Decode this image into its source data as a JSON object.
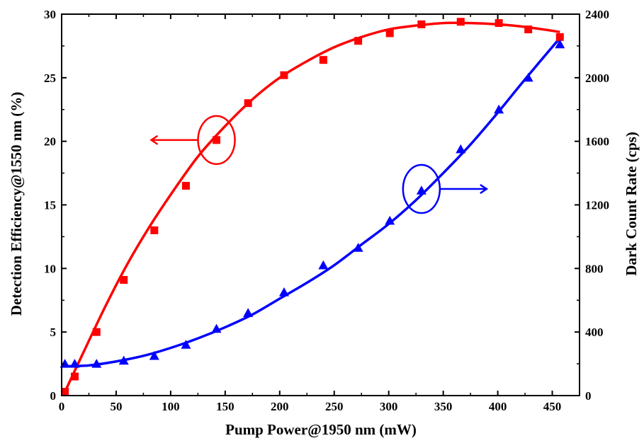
{
  "chart_data": {
    "type": "scatter",
    "xlabel": "Pump Power@1950 nm (mW)",
    "ylabel_left": "Detection Efficiency@1550 nm (%)",
    "ylabel_right": "Dark Count Rate (cps)",
    "xlim": [
      0,
      475
    ],
    "ylim_left": [
      0,
      30
    ],
    "ylim_right": [
      0,
      2400
    ],
    "x_ticks": [
      0,
      50,
      100,
      150,
      200,
      250,
      300,
      350,
      400,
      450
    ],
    "y_left_ticks": [
      0,
      5,
      10,
      15,
      20,
      25,
      30
    ],
    "y_right_ticks": [
      0,
      400,
      800,
      1200,
      1600,
      2000,
      2400
    ],
    "grid": false,
    "series": [
      {
        "axis": "left",
        "marker": "square",
        "color": "#ff0000",
        "x": [
          3,
          12,
          32,
          57,
          85,
          114,
          142,
          171,
          204,
          240,
          272,
          301,
          330,
          366,
          401,
          428,
          457
        ],
        "y": [
          0.3,
          1.5,
          5.0,
          9.1,
          13.0,
          16.5,
          20.1,
          23.0,
          25.2,
          26.4,
          27.9,
          28.5,
          29.2,
          29.4,
          29.3,
          28.8,
          28.2
        ],
        "fit": {
          "x": [
            3,
            20,
            40,
            60,
            80,
            100,
            125,
            150,
            175,
            200,
            225,
            250,
            275,
            300,
            325,
            350,
            375,
            400,
            425,
            457
          ],
          "y": [
            0.3,
            3.4,
            7.0,
            10.3,
            13.2,
            15.8,
            18.8,
            21.2,
            23.3,
            25.0,
            26.3,
            27.4,
            28.2,
            28.8,
            29.1,
            29.3,
            29.3,
            29.2,
            29.0,
            28.6
          ]
        }
      },
      {
        "axis": "right",
        "marker": "triangle",
        "color": "#0000ff",
        "x": [
          3,
          12,
          32,
          57,
          85,
          114,
          142,
          171,
          204,
          240,
          272,
          301,
          330,
          366,
          401,
          428,
          457
        ],
        "y": [
          200,
          200,
          200,
          220,
          250,
          320,
          420,
          520,
          650,
          820,
          930,
          1100,
          1290,
          1550,
          1800,
          2000,
          2210
        ],
        "fit": {
          "x": [
            3,
            25,
            50,
            75,
            100,
            125,
            150,
            175,
            200,
            225,
            250,
            275,
            300,
            325,
            350,
            375,
            400,
            425,
            457
          ],
          "y": [
            185,
            190,
            215,
            250,
            300,
            360,
            430,
            510,
            610,
            710,
            820,
            950,
            1080,
            1230,
            1400,
            1580,
            1780,
            1990,
            2250
          ]
        }
      }
    ],
    "annotations": [
      {
        "type": "ellipse-with-arrow",
        "series": 0,
        "center": [
          142,
          20.1
        ],
        "arrow_direction": "left"
      },
      {
        "type": "ellipse-with-arrow",
        "series": 1,
        "center": [
          330,
          1300
        ],
        "arrow_direction": "right"
      }
    ]
  }
}
